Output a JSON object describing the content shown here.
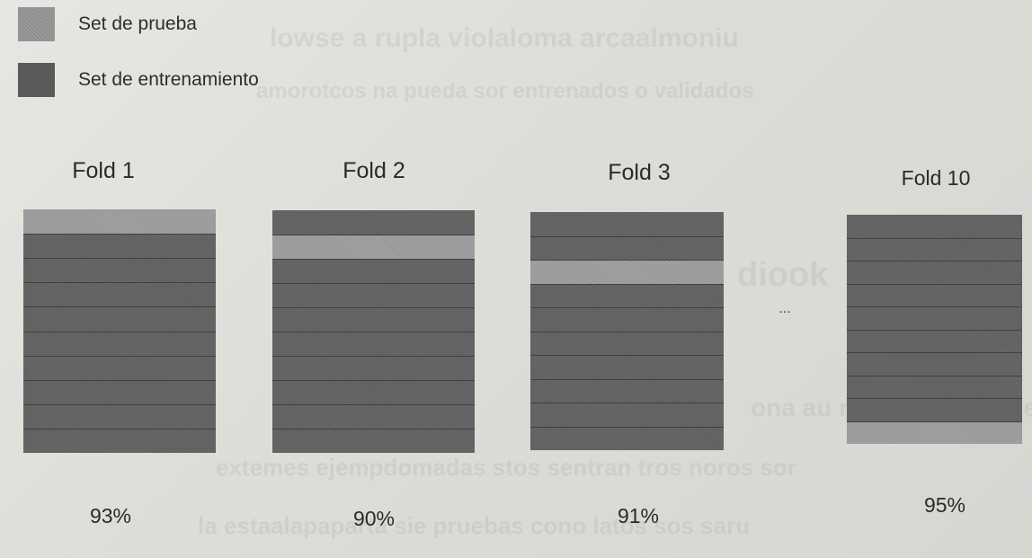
{
  "legend": {
    "test_label": "Set de prueba",
    "train_label": "Set de entrenamiento",
    "test_color": "#9a9a9a",
    "train_color": "#5e5e5e"
  },
  "folds": [
    {
      "title": "Fold 1",
      "accuracy": "93%",
      "test_segment": 1
    },
    {
      "title": "Fold 2",
      "accuracy": "90%",
      "test_segment": 2
    },
    {
      "title": "Fold 3",
      "accuracy": "91%",
      "test_segment": 3
    },
    {
      "title": "Fold 10",
      "accuracy": "95%",
      "test_segment": 10
    }
  ],
  "segments_per_fold": 10,
  "ellipsis": "..."
}
